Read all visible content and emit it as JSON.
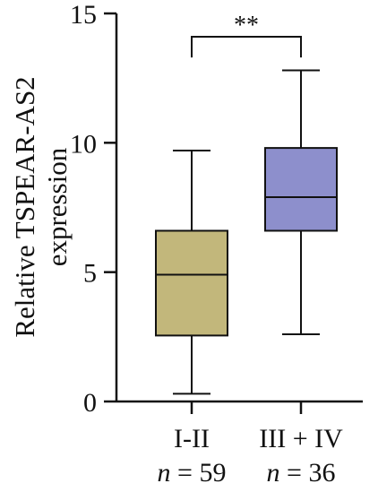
{
  "chart_data": {
    "type": "box",
    "title": "",
    "xlabel": "",
    "ylabel": [
      "Relative TSPEAR-AS2",
      "expression"
    ],
    "ylim": [
      0,
      15
    ],
    "yticks": [
      "0",
      "5",
      "10",
      "15"
    ],
    "grid": false,
    "legend": "none",
    "categories": [
      {
        "label": "I-II",
        "n_prefix": "n",
        "n_text": " = 59",
        "min": 0.3,
        "q1": 2.55,
        "median": 4.9,
        "q3": 6.6,
        "max": 9.7,
        "color": "#c2b77b"
      },
      {
        "label": "III + IV",
        "n_prefix": "n",
        "n_text": " = 36",
        "min": 2.6,
        "q1": 6.6,
        "median": 7.9,
        "q3": 9.8,
        "max": 12.8,
        "color": "#8d8fcc"
      }
    ],
    "annotation": {
      "text": "**",
      "from": 0,
      "to": 1,
      "y": 14.1,
      "drop": 0.8
    }
  }
}
